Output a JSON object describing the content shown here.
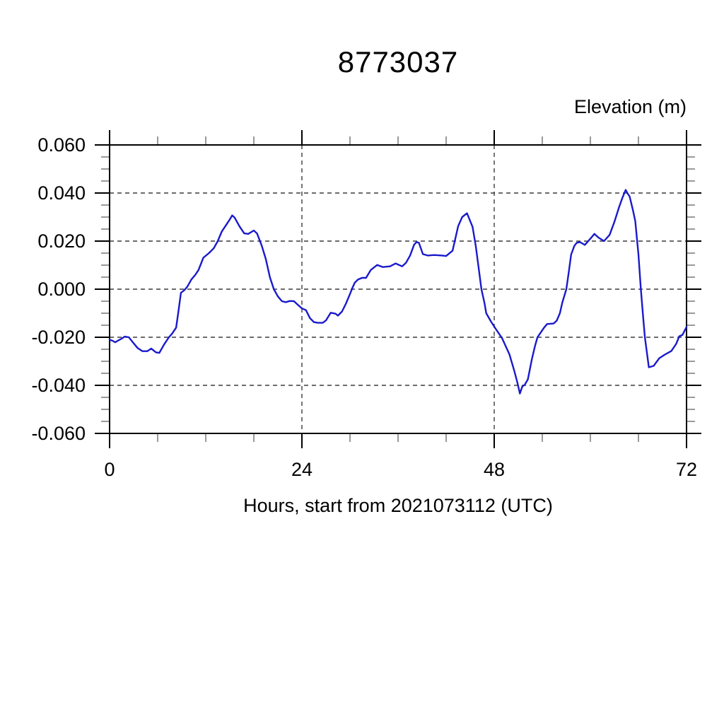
{
  "title": "8773037",
  "units_label": "Elevation (m)",
  "x_axis_label": "Hours, start from 2021073112 (UTC)",
  "chart_data": {
    "type": "line",
    "title": "8773037",
    "ylabel": "Elevation (m)",
    "xlabel": "Hours, start from 2021073112 (UTC)",
    "xlim": [
      0,
      72
    ],
    "ylim": [
      -0.06,
      0.06
    ],
    "x_major_ticks": [
      0,
      24,
      48,
      72
    ],
    "x_tick_labels": [
      "0",
      "24",
      "48",
      "72"
    ],
    "x_minor_step": 6,
    "y_major_ticks": [
      0.06,
      0.04,
      0.02,
      0.0,
      -0.02,
      -0.04,
      -0.06
    ],
    "y_tick_labels": [
      "0.060",
      "0.040",
      "0.020",
      "0.000",
      "-0.020",
      "-0.040",
      "-0.060"
    ],
    "y_minor_step": 0.005,
    "grid": "dashed-major",
    "grid_color": "#3c3c3c",
    "frame_color": "#000000",
    "minor_tick_color": "#808080",
    "line_color": "#1a1acc",
    "legend": "none",
    "series": [
      {
        "name": "elevation",
        "points": [
          [
            0,
            -0.021
          ],
          [
            0.4,
            -0.0215
          ],
          [
            0.7,
            -0.0221
          ],
          [
            1.1,
            -0.0213
          ],
          [
            1.5,
            -0.0206
          ],
          [
            1.9,
            -0.0197
          ],
          [
            2.4,
            -0.02
          ],
          [
            2.9,
            -0.0221
          ],
          [
            3.5,
            -0.0245
          ],
          [
            4.1,
            -0.0258
          ],
          [
            4.7,
            -0.0258
          ],
          [
            5.2,
            -0.0247
          ],
          [
            5.8,
            -0.0263
          ],
          [
            6.2,
            -0.0265
          ],
          [
            6.8,
            -0.023
          ],
          [
            7.4,
            -0.02
          ],
          [
            7.8,
            -0.0185
          ],
          [
            8.3,
            -0.016
          ],
          [
            8.6,
            -0.009
          ],
          [
            8.9,
            -0.0015
          ],
          [
            9.3,
            -0.0005
          ],
          [
            9.7,
            0.001
          ],
          [
            10.2,
            0.004
          ],
          [
            10.7,
            0.006
          ],
          [
            11.1,
            0.008
          ],
          [
            11.7,
            0.0131
          ],
          [
            12.4,
            0.015
          ],
          [
            13,
            0.017
          ],
          [
            13.5,
            0.02
          ],
          [
            14,
            0.024
          ],
          [
            14.6,
            0.027
          ],
          [
            15,
            0.029
          ],
          [
            15.3,
            0.0307
          ],
          [
            15.6,
            0.0298
          ],
          [
            16.2,
            0.0262
          ],
          [
            16.8,
            0.0232
          ],
          [
            17.3,
            0.023
          ],
          [
            18,
            0.0244
          ],
          [
            18.4,
            0.0232
          ],
          [
            19,
            0.018
          ],
          [
            19.5,
            0.0125
          ],
          [
            20,
            0.005
          ],
          [
            20.5,
            0
          ],
          [
            21,
            -0.003
          ],
          [
            21.5,
            -0.005
          ],
          [
            22,
            -0.0054
          ],
          [
            22.5,
            -0.0049
          ],
          [
            23,
            -0.005
          ],
          [
            23.5,
            -0.0065
          ],
          [
            24,
            -0.008
          ],
          [
            24.5,
            -0.0087
          ],
          [
            25,
            -0.012
          ],
          [
            25.5,
            -0.0137
          ],
          [
            26,
            -0.014
          ],
          [
            26.6,
            -0.014
          ],
          [
            27,
            -0.013
          ],
          [
            27.6,
            -0.0098
          ],
          [
            28.2,
            -0.0102
          ],
          [
            28.5,
            -0.011
          ],
          [
            29,
            -0.0093
          ],
          [
            29.5,
            -0.006
          ],
          [
            30,
            -0.002
          ],
          [
            30.3,
            0.0005
          ],
          [
            30.6,
            0.0027
          ],
          [
            31,
            0.004
          ],
          [
            31.5,
            0.0047
          ],
          [
            32,
            0.0047
          ],
          [
            32.6,
            0.008
          ],
          [
            33.4,
            0.0101
          ],
          [
            34.1,
            0.0092
          ],
          [
            35,
            0.0095
          ],
          [
            35.7,
            0.0107
          ],
          [
            36.5,
            0.0095
          ],
          [
            37,
            0.011
          ],
          [
            37.5,
            0.014
          ],
          [
            38,
            0.0185
          ],
          [
            38.3,
            0.0196
          ],
          [
            38.6,
            0.0193
          ],
          [
            39.1,
            0.0146
          ],
          [
            39.7,
            0.014
          ],
          [
            40.5,
            0.0142
          ],
          [
            41.5,
            0.014
          ],
          [
            42,
            0.0138
          ],
          [
            42.8,
            0.016
          ],
          [
            43.5,
            0.0262
          ],
          [
            44,
            0.03
          ],
          [
            44.6,
            0.0316
          ],
          [
            45.3,
            0.0259
          ],
          [
            45.7,
            0.018
          ],
          [
            46,
            0.0104
          ],
          [
            46.4,
            0
          ],
          [
            46.8,
            -0.006
          ],
          [
            47,
            -0.01
          ],
          [
            47.6,
            -0.0135
          ],
          [
            48.2,
            -0.0166
          ],
          [
            49,
            -0.0205
          ],
          [
            49.9,
            -0.0271
          ],
          [
            50.5,
            -0.0339
          ],
          [
            50.9,
            -0.039
          ],
          [
            51.2,
            -0.0434
          ],
          [
            51.5,
            -0.0405
          ],
          [
            51.8,
            -0.0398
          ],
          [
            52.2,
            -0.0375
          ],
          [
            52.7,
            -0.0291
          ],
          [
            53.1,
            -0.0235
          ],
          [
            53.4,
            -0.02
          ],
          [
            54.2,
            -0.0161
          ],
          [
            54.6,
            -0.0145
          ],
          [
            55.4,
            -0.0143
          ],
          [
            55.8,
            -0.0131
          ],
          [
            56.2,
            -0.01
          ],
          [
            56.5,
            -0.0056
          ],
          [
            57,
            0
          ],
          [
            57.3,
            0.007
          ],
          [
            57.6,
            0.0144
          ],
          [
            58,
            0.018
          ],
          [
            58.3,
            0.0193
          ],
          [
            58.7,
            0.0196
          ],
          [
            59.3,
            0.0184
          ],
          [
            60,
            0.021
          ],
          [
            60.5,
            0.023
          ],
          [
            61,
            0.0215
          ],
          [
            61.7,
            0.02
          ],
          [
            62.4,
            0.0226
          ],
          [
            63,
            0.028
          ],
          [
            63.6,
            0.0343
          ],
          [
            64,
            0.038
          ],
          [
            64.4,
            0.0413
          ],
          [
            64.7,
            0.0395
          ],
          [
            64.9,
            0.0386
          ],
          [
            65.3,
            0.033
          ],
          [
            65.6,
            0.0283
          ],
          [
            66,
            0.0144
          ],
          [
            66.3,
            0
          ],
          [
            66.6,
            -0.0122
          ],
          [
            66.8,
            -0.02
          ],
          [
            67.3,
            -0.0325
          ],
          [
            67.9,
            -0.0319
          ],
          [
            68.6,
            -0.0287
          ],
          [
            69.3,
            -0.0272
          ],
          [
            70.1,
            -0.0257
          ],
          [
            70.7,
            -0.0228
          ],
          [
            71.1,
            -0.0196
          ],
          [
            71.5,
            -0.019
          ],
          [
            72,
            -0.0157
          ]
        ]
      }
    ]
  }
}
